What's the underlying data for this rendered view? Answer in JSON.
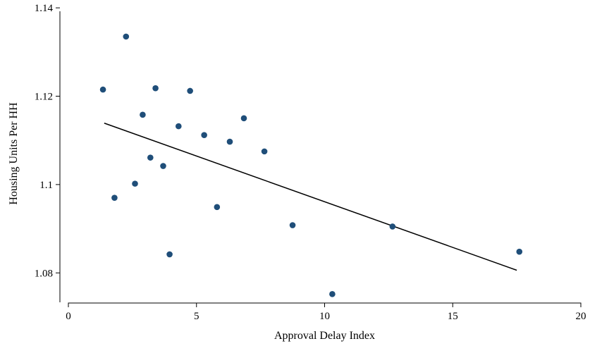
{
  "chart_data": {
    "type": "scatter",
    "title": "",
    "xlabel": "Approval Delay Index",
    "ylabel": "Housing Units Per HH",
    "xlim": [
      0,
      20
    ],
    "ylim": [
      1.0735,
      1.1405
    ],
    "xticks": [
      0,
      5,
      10,
      15,
      20
    ],
    "xtick_labels": [
      "0",
      "5",
      "10",
      "15",
      "20"
    ],
    "yticks": [
      1.08,
      1.1,
      1.12,
      1.14
    ],
    "ytick_labels": [
      "1.08",
      "1.1",
      "1.12",
      "1.14"
    ],
    "grid": false,
    "legend": "none",
    "series": [
      {
        "marker_color": "#1f4e79",
        "points": [
          {
            "x": 1.35,
            "y": 1.1215
          },
          {
            "x": 1.8,
            "y": 1.097
          },
          {
            "x": 2.25,
            "y": 1.1335
          },
          {
            "x": 2.6,
            "y": 1.1002
          },
          {
            "x": 2.9,
            "y": 1.1158
          },
          {
            "x": 3.2,
            "y": 1.1061
          },
          {
            "x": 3.4,
            "y": 1.1218
          },
          {
            "x": 3.7,
            "y": 1.1042
          },
          {
            "x": 3.95,
            "y": 1.0842
          },
          {
            "x": 4.3,
            "y": 1.1132
          },
          {
            "x": 4.75,
            "y": 1.1212
          },
          {
            "x": 5.3,
            "y": 1.1112
          },
          {
            "x": 5.8,
            "y": 1.0949
          },
          {
            "x": 6.3,
            "y": 1.1097
          },
          {
            "x": 6.85,
            "y": 1.115
          },
          {
            "x": 7.65,
            "y": 1.1075
          },
          {
            "x": 8.75,
            "y": 1.0908
          },
          {
            "x": 10.3,
            "y": 1.0752
          },
          {
            "x": 12.65,
            "y": 1.0905
          },
          {
            "x": 17.6,
            "y": 1.0848
          }
        ]
      }
    ],
    "fit_line": {
      "color": "#000000",
      "start": {
        "x": 1.4,
        "y": 1.1139
      },
      "end": {
        "x": 17.5,
        "y": 1.0806
      }
    }
  }
}
